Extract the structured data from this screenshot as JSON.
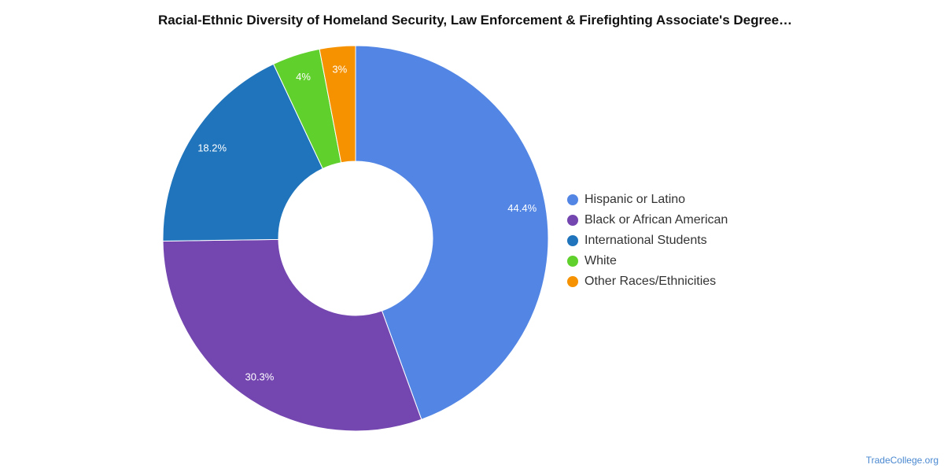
{
  "chart_data": {
    "type": "pie",
    "title": "Racial-Ethnic Diversity of Homeland Security, Law Enforcement & Firefighting Associate's Degree…",
    "categories": [
      "Hispanic or Latino",
      "Black or African American",
      "International Students",
      "White",
      "Other Races/Ethnicities"
    ],
    "values": [
      44.4,
      30.3,
      18.2,
      4,
      3
    ],
    "value_labels": [
      "44.4%",
      "30.3%",
      "18.2%",
      "4%",
      "3%"
    ],
    "colors": [
      "#5386e4",
      "#7447b0",
      "#1f74bb",
      "#60d02c",
      "#f69200"
    ],
    "donut": true,
    "legend_position": "right"
  },
  "footer": {
    "credit": "TradeCollege.org"
  }
}
